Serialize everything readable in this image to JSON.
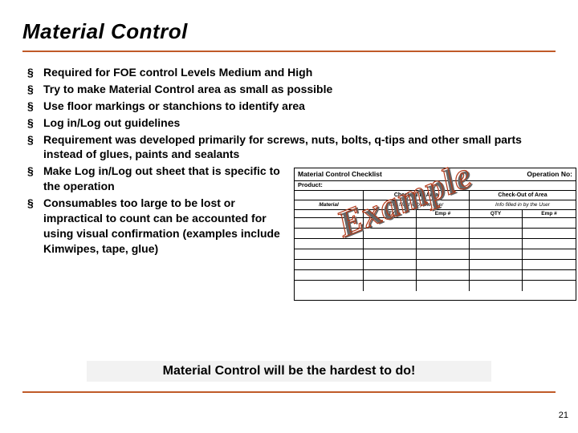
{
  "title": "Material Control",
  "bullets": [
    "Required for FOE control Levels Medium and High",
    "Try to make Material Control area as small as possible",
    "Use floor markings or stanchions to identify area",
    "Log in/Log out guidelines",
    "Requirement was developed primarily for screws, nuts, bolts, q-tips and other small parts instead of glues, paints and sealants",
    "Make Log in/Log out sheet that is specific to the operation",
    "Consumables too large to be lost or impractical to count can be accounted for using visual confirmation (examples include Kimwipes, tape, glue)"
  ],
  "checklist": {
    "title": "Material Control Checklist",
    "operation_no_label": "Operation No:",
    "product_label": "Product:",
    "checkin_label": "Check-in to Area",
    "checkout_label": "Check-Out of Area",
    "sub_material": "Material",
    "sub_note_in": "Info filled in by the User",
    "sub_note_out": "Info filled in by the User",
    "qty_label": "QTY",
    "emp_label": "Emp #",
    "blank_rows": 7
  },
  "example_stamp": "Example",
  "callout": "Material Control will be the hardest to do!",
  "page_number": "21",
  "colors": {
    "rule": "#c05a28",
    "callout_bg": "#f2f2f2",
    "stamp_outline": "#b23a1a",
    "stamp_shadow": "#666666",
    "text": "#000000",
    "background": "#ffffff"
  }
}
